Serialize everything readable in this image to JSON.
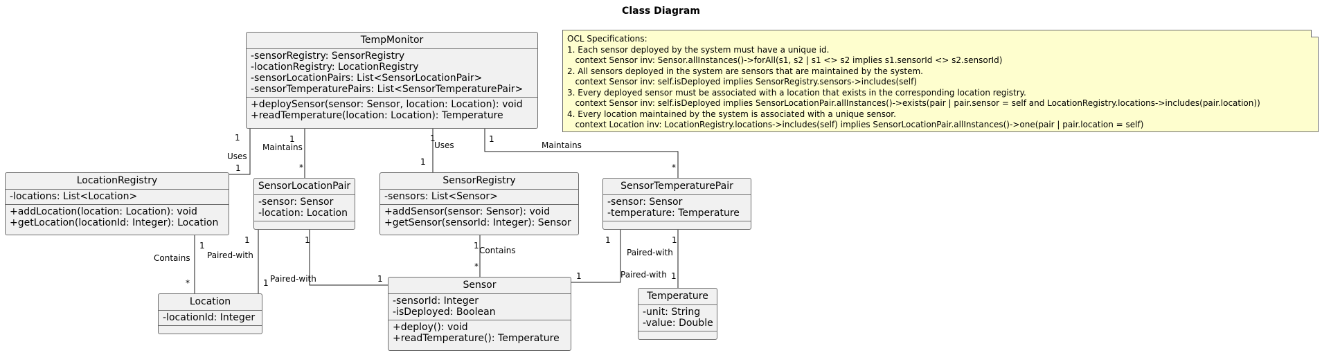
{
  "title": "Class Diagram",
  "classes": {
    "temp_monitor": {
      "name": "TempMonitor",
      "attributes": [
        "-sensorRegistry: SensorRegistry",
        "-locationRegistry: LocationRegistry",
        "-sensorLocationPairs: List<SensorLocationPair>",
        "-sensorTemperaturePairs: List<SensorTemperaturePair>"
      ],
      "operations": [
        "+deploySensor(sensor: Sensor, location: Location): void",
        "+readTemperature(location: Location): Temperature"
      ]
    },
    "location_registry": {
      "name": "LocationRegistry",
      "attributes": [
        "-locations: List<Location>"
      ],
      "operations": [
        "+addLocation(location: Location): void",
        "+getLocation(locationId: Integer): Location"
      ]
    },
    "sensor_location_pair": {
      "name": "SensorLocationPair",
      "attributes": [
        "-sensor: Sensor",
        "-location: Location"
      ],
      "operations": []
    },
    "sensor_registry": {
      "name": "SensorRegistry",
      "attributes": [
        "-sensors: List<Sensor>"
      ],
      "operations": [
        "+addSensor(sensor: Sensor): void",
        "+getSensor(sensorId: Integer): Sensor"
      ]
    },
    "sensor_temperature_pair": {
      "name": "SensorTemperaturePair",
      "attributes": [
        "-sensor: Sensor",
        "-temperature: Temperature"
      ],
      "operations": []
    },
    "location": {
      "name": "Location",
      "attributes": [
        "-locationId: Integer"
      ],
      "operations": []
    },
    "sensor": {
      "name": "Sensor",
      "attributes": [
        "-sensorId: Integer",
        "-isDeployed: Boolean"
      ],
      "operations": [
        "+deploy(): void",
        "+readTemperature(): Temperature"
      ]
    },
    "temperature": {
      "name": "Temperature",
      "attributes": [
        "-unit: String",
        "-value: Double"
      ],
      "operations": []
    }
  },
  "note": {
    "lines": [
      "OCL Specifications:",
      "1. Each sensor deployed by the system must have a unique id.",
      "   context Sensor inv: Sensor.allInstances()->forAll(s1, s2 | s1 <> s2 implies s1.sensorId <> s2.sensorId)",
      "2. All sensors deployed in the system are sensors that are maintained by the system.",
      "   context Sensor inv: self.isDeployed implies SensorRegistry.sensors->includes(self)",
      "3. Every deployed sensor must be associated with a location that exists in the corresponding location registry.",
      "   context Sensor inv: self.isDeployed implies SensorLocationPair.allInstances()->exists(pair | pair.sensor = self and LocationRegistry.locations->includes(pair.location))",
      "4. Every location maintained by the system is associated with a unique sensor.",
      "   context Location inv: LocationRegistry.locations->includes(self) implies SensorLocationPair.allInstances()->one(pair | pair.location = self)"
    ]
  },
  "edge_labels": {
    "tm_lr_mult_top": "1",
    "tm_lr_role": "Uses",
    "tm_lr_mult_bottom": "1",
    "tm_slp_mult_top": "1",
    "tm_slp_role": "Maintains",
    "tm_slp_mult_bottom": "*",
    "tm_sr_mult_top": "1",
    "tm_sr_role": "Uses",
    "tm_sr_mult_bottom": "1",
    "tm_stp_mult_top": "1",
    "tm_stp_role": "Maintains",
    "tm_stp_mult_bottom": "*",
    "lr_loc_mult_top": "1",
    "lr_loc_role": "Contains",
    "lr_loc_mult_bottom": "*",
    "slp_loc_mult_top": "1",
    "slp_loc_role": "Paired-with",
    "slp_loc_mult_bottom": "1",
    "slp_sensor_mult_top": "1",
    "slp_sensor_role": "Paired-with",
    "slp_sensor_mult_bottom": "1",
    "sr_sensor_mult_top": "1",
    "sr_sensor_role": "Contains",
    "sr_sensor_mult_bottom": "*",
    "stp_sensor_mult_top": "1",
    "stp_sensor_role": "Paired-with",
    "stp_sensor_mult_bottom": "1",
    "stp_temp_mult_top": "1",
    "stp_temp_role": "Paired-with",
    "stp_temp_mult_bottom": "1"
  }
}
